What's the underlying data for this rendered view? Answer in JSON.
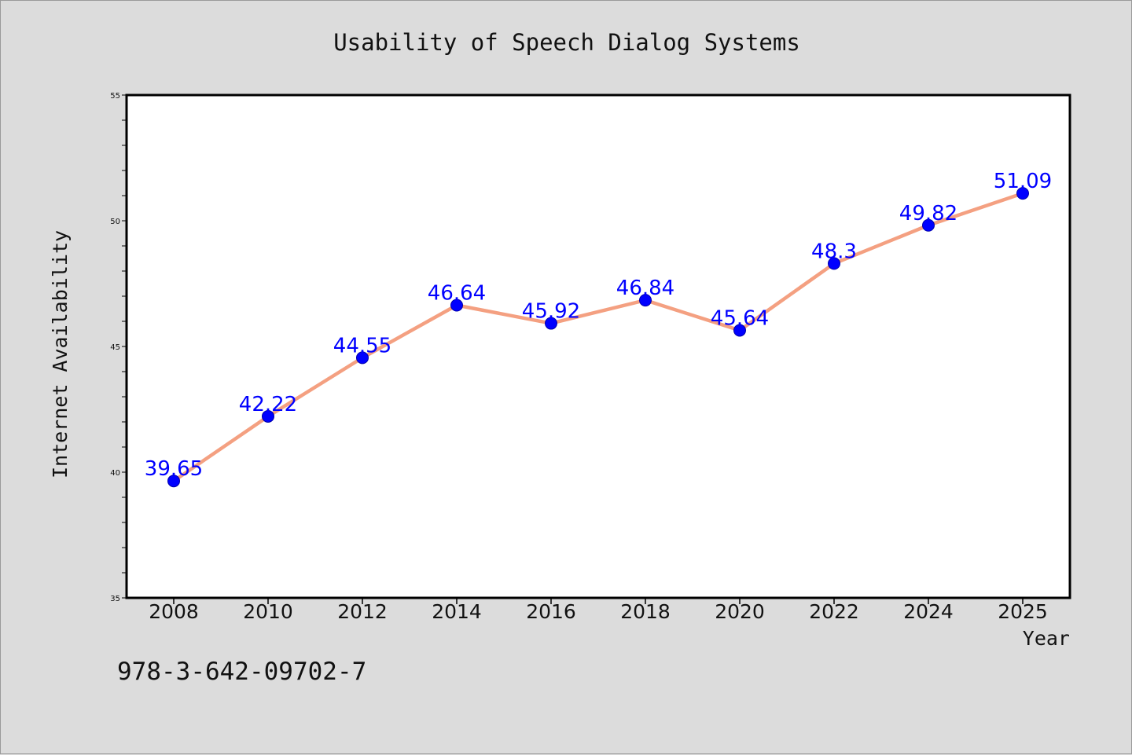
{
  "chart_data": {
    "type": "line",
    "title": "Usability of Speech Dialog Systems",
    "xlabel": "Year",
    "ylabel": "Internet Availability",
    "categories": [
      "2008",
      "2010",
      "2012",
      "2014",
      "2016",
      "2018",
      "2020",
      "2022",
      "2024",
      "2025"
    ],
    "series": [
      {
        "values": [
          39.65,
          42.22,
          44.55,
          46.64,
          45.92,
          46.84,
          45.64,
          48.3,
          49.82,
          51.09
        ],
        "line_color": "#f4a081",
        "marker_color": "#0000ff",
        "label_color": "#0000ff"
      }
    ],
    "data_labels": [
      "39.65",
      "42.22",
      "44.55",
      "46.64",
      "45.92",
      "46.84",
      "45.64",
      "48.3",
      "49.82",
      "51.09"
    ],
    "yticks": [
      "35",
      "40",
      "45",
      "50",
      "55"
    ],
    "ylim": [
      35,
      55
    ],
    "grid": false,
    "legend": "none"
  },
  "footer": {
    "isbn": "978-3-642-09702-7"
  },
  "colors": {
    "background": "#dcdcdc",
    "plot_area": "#ffffff",
    "axes": "#000000"
  }
}
